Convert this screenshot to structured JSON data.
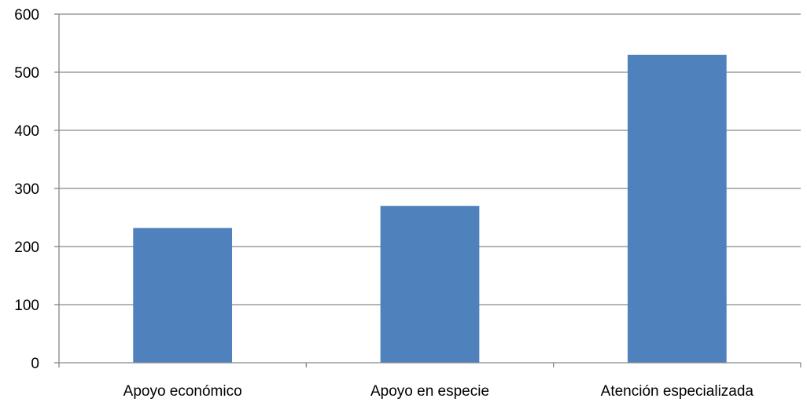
{
  "chart_data": {
    "type": "bar",
    "categories": [
      "Apoyo económico",
      "Apoyo en especie",
      "Atención especializada"
    ],
    "values": [
      232,
      270,
      530
    ],
    "title": "",
    "xlabel": "",
    "ylabel": "",
    "ylim": [
      0,
      600
    ],
    "yticks": [
      0,
      100,
      200,
      300,
      400,
      500,
      600
    ],
    "grid": true,
    "legend": "none",
    "bar_color": "#4F81BD",
    "grid_color": "#868686"
  }
}
